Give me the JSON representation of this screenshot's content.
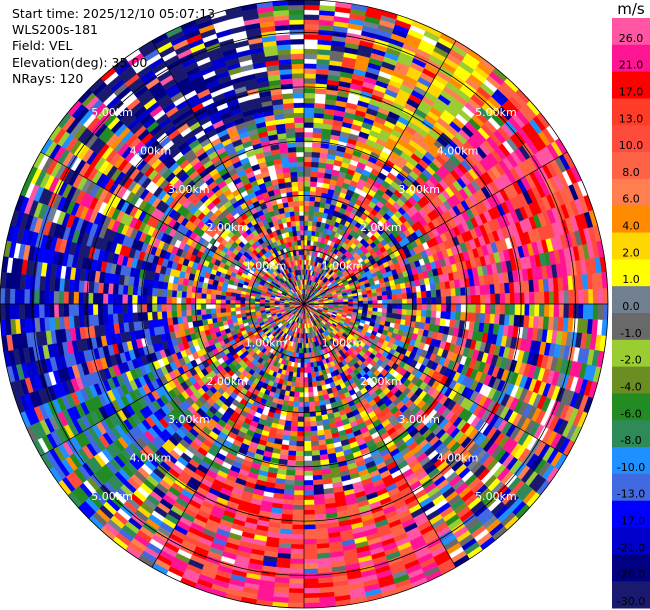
{
  "info": {
    "start_time": "Start time: 2025/12/10 05:07:13",
    "instrument": "WLS200s-181",
    "field": "Field: VEL",
    "elevation": "Elevation(deg): 35.00",
    "nrays": "NRays: 120"
  },
  "colorbar": {
    "unit": "m/s",
    "levels": [
      {
        "label": "26.0",
        "color": "#ff55a3"
      },
      {
        "label": "21.0",
        "color": "#ff1493"
      },
      {
        "label": "17.0",
        "color": "#ff0000"
      },
      {
        "label": "13.0",
        "color": "#ff3c28"
      },
      {
        "label": "10.0",
        "color": "#ff4b3c"
      },
      {
        "label": "8.0",
        "color": "#ff6347"
      },
      {
        "label": "6.0",
        "color": "#ff7f50"
      },
      {
        "label": "4.0",
        "color": "#ff8c00"
      },
      {
        "label": "2.0",
        "color": "#ffd700"
      },
      {
        "label": "1.0",
        "color": "#ffff00"
      },
      {
        "label": "0.0",
        "color": "#708090"
      },
      {
        "label": "-1.0",
        "color": "#696969"
      },
      {
        "label": "-2.0",
        "color": "#9acd32"
      },
      {
        "label": "-4.0",
        "color": "#6b8e23"
      },
      {
        "label": "-6.0",
        "color": "#228b22"
      },
      {
        "label": "-8.0",
        "color": "#2e8b57"
      },
      {
        "label": "-10.0",
        "color": "#1e90ff"
      },
      {
        "label": "-13.0",
        "color": "#4169e1"
      },
      {
        "label": "-17.0",
        "color": "#0000ff"
      },
      {
        "label": "-21.0",
        "color": "#0000cd"
      },
      {
        "label": "-26.0",
        "color": "#000080"
      },
      {
        "label": "-30.0",
        "color": "#191970"
      }
    ]
  },
  "chart_data": {
    "type": "heatmap",
    "projection": "polar PPI (plan position indicator)",
    "field": "VEL",
    "units": "m/s",
    "rays": 120,
    "range_rings": [
      {
        "label": "1.00km",
        "km": 1
      },
      {
        "label": "2.00km",
        "km": 2
      },
      {
        "label": "3.00km",
        "km": 3
      },
      {
        "label": "4.00km",
        "km": 4
      },
      {
        "label": "5.00km",
        "km": 5
      }
    ],
    "max_range_km": 5.6,
    "value_range": [
      -30,
      30
    ],
    "sectors": [
      {
        "azimuth_from": 20,
        "azimuth_to": 40,
        "range_from_km": 3.0,
        "range_to_km": 5.6,
        "dominant": "yellow / orange (+1 to +6 m/s)"
      },
      {
        "azimuth_from": 45,
        "azimuth_to": 90,
        "range_from_km": 2.5,
        "range_to_km": 5.6,
        "dominant": "red / pink (+10 to +26 m/s)"
      },
      {
        "azimuth_from": 150,
        "azimuth_to": 210,
        "range_from_km": 3.5,
        "range_to_km": 5.6,
        "dominant": "red / pink (+10 to +26 m/s)"
      },
      {
        "azimuth_from": 225,
        "azimuth_to": 250,
        "range_from_km": 3.0,
        "range_to_km": 5.6,
        "dominant": "green / blue (-6 to -17 m/s)"
      },
      {
        "azimuth_from": 250,
        "azimuth_to": 290,
        "range_from_km": 2.5,
        "range_to_km": 5.6,
        "dominant": "blue / navy (-13 to -30 m/s)"
      },
      {
        "azimuth_from": 315,
        "azimuth_to": 350,
        "range_from_km": 3.5,
        "range_to_km": 5.6,
        "dominant": "navy (-21 to -30 m/s)"
      }
    ]
  }
}
